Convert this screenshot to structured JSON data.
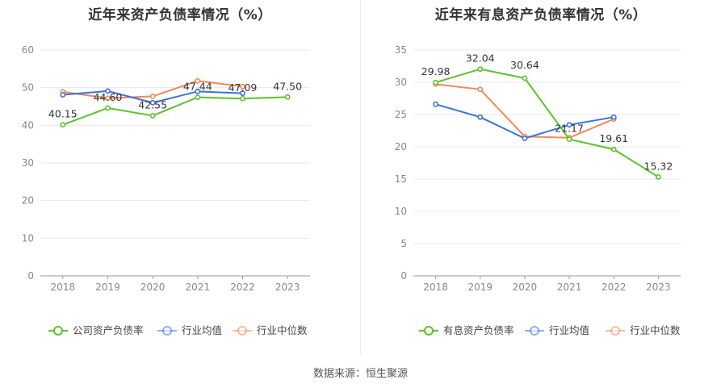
{
  "source_text": "数据来源：恒生聚源",
  "chart_data": [
    {
      "type": "line",
      "title": "近年来资产负债率情况（%）",
      "categories": [
        "2018",
        "2019",
        "2020",
        "2021",
        "2022",
        "2023"
      ],
      "ylim": [
        0,
        60
      ],
      "yticks": [
        0,
        10,
        20,
        30,
        40,
        50,
        60
      ],
      "grid": true,
      "legend_position": "bottom",
      "series": [
        {
          "name": "公司资产负债率",
          "color": "#5cc22d",
          "values": [
            40.15,
            44.6,
            42.55,
            47.44,
            47.09,
            47.5
          ],
          "labels": [
            "40.15",
            "44.60",
            "42.55",
            "47.44",
            "47.09",
            "47.50"
          ]
        },
        {
          "name": "行业均值",
          "color": "#3a72d8",
          "values": [
            48.1,
            49.1,
            46.0,
            49.0,
            48.5,
            null
          ]
        },
        {
          "name": "行业中位数",
          "color": "#f0885a",
          "values": [
            48.9,
            47.2,
            47.7,
            51.8,
            50.3,
            null
          ]
        }
      ]
    },
    {
      "type": "line",
      "title": "近年来有息资产负债率情况（%）",
      "categories": [
        "2018",
        "2019",
        "2020",
        "2021",
        "2022",
        "2023"
      ],
      "ylim": [
        0,
        35
      ],
      "yticks": [
        0,
        5,
        10,
        15,
        20,
        25,
        30,
        35
      ],
      "grid": true,
      "legend_position": "bottom",
      "series": [
        {
          "name": "有息资产负债率",
          "color": "#5cc22d",
          "values": [
            29.98,
            32.04,
            30.64,
            21.17,
            19.61,
            15.32
          ],
          "labels": [
            "29.98",
            "32.04",
            "30.64",
            "21.17",
            "19.61",
            "15.32"
          ]
        },
        {
          "name": "行业均值",
          "color": "#3a72d8",
          "values": [
            26.6,
            24.6,
            21.3,
            23.4,
            24.6,
            null
          ]
        },
        {
          "name": "行业中位数",
          "color": "#f0885a",
          "values": [
            29.7,
            28.9,
            21.6,
            21.4,
            24.3,
            null
          ]
        }
      ]
    }
  ]
}
